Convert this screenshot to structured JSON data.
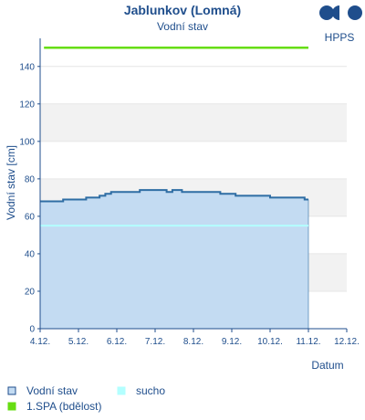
{
  "header": {
    "title": "Jablunkov (Lomná)",
    "subtitle": "Vodní stav"
  },
  "logo": {
    "text": "HPPS",
    "color": "#1f4e8c"
  },
  "colors": {
    "text": "#1f4e8c",
    "series_line": "#2e6da4",
    "series_fill": "#c3dbf2",
    "sucho": "#b3ffff",
    "spa1": "#66dd11",
    "band": "#f2f2f2",
    "axis": "#1f4e8c"
  },
  "legend": [
    {
      "label": "Vodní stav",
      "symbol": "box-outline"
    },
    {
      "label": "sucho",
      "symbol": "box-cyan"
    },
    {
      "label": "1.SPA (bdělost)",
      "symbol": "box-green"
    }
  ],
  "chart_data": {
    "type": "area",
    "title": "Jablunkov (Lomná)",
    "subtitle": "Vodní stav",
    "xlabel": "Datum",
    "ylabel": "Vodní stav [cm]",
    "x_ticks": [
      "4.12.",
      "5.12.",
      "6.12.",
      "7.12.",
      "8.12.",
      "9.12.",
      "10.12.",
      "11.12.",
      "12.12."
    ],
    "xlim": [
      0,
      8
    ],
    "ylim": [
      0,
      155
    ],
    "y_ticks": [
      0,
      20,
      40,
      60,
      80,
      100,
      120,
      140
    ],
    "grid": "alternating horizontal bands",
    "legend_position": "bottom",
    "series": [
      {
        "name": "Vodní stav",
        "step": true,
        "x": [
          0,
          0.6,
          1.2,
          1.55,
          1.7,
          1.8,
          1.85,
          2.0,
          2.45,
          2.6,
          2.65,
          3.25,
          3.3,
          3.45,
          3.7,
          3.9,
          4.05,
          4.15,
          4.3,
          4.45,
          4.7,
          4.8,
          5.1,
          5.6,
          5.9,
          6.0,
          6.2,
          6.4,
          6.5,
          6.7,
          6.9,
          7.0
        ],
        "y": [
          68,
          69,
          70,
          71,
          72,
          72,
          73,
          73,
          73,
          74,
          74,
          74,
          73,
          74,
          73,
          73,
          73,
          73,
          73,
          73,
          72,
          72,
          71,
          71,
          71,
          70,
          70,
          70,
          70,
          70,
          69,
          69
        ]
      },
      {
        "name": "sucho",
        "type": "constant",
        "x": [
          0,
          7.0
        ],
        "y": [
          55,
          55
        ]
      },
      {
        "name": "1.SPA (bdělost)",
        "type": "constant",
        "x": [
          0.1,
          7.0
        ],
        "y": [
          150,
          150
        ]
      }
    ]
  }
}
